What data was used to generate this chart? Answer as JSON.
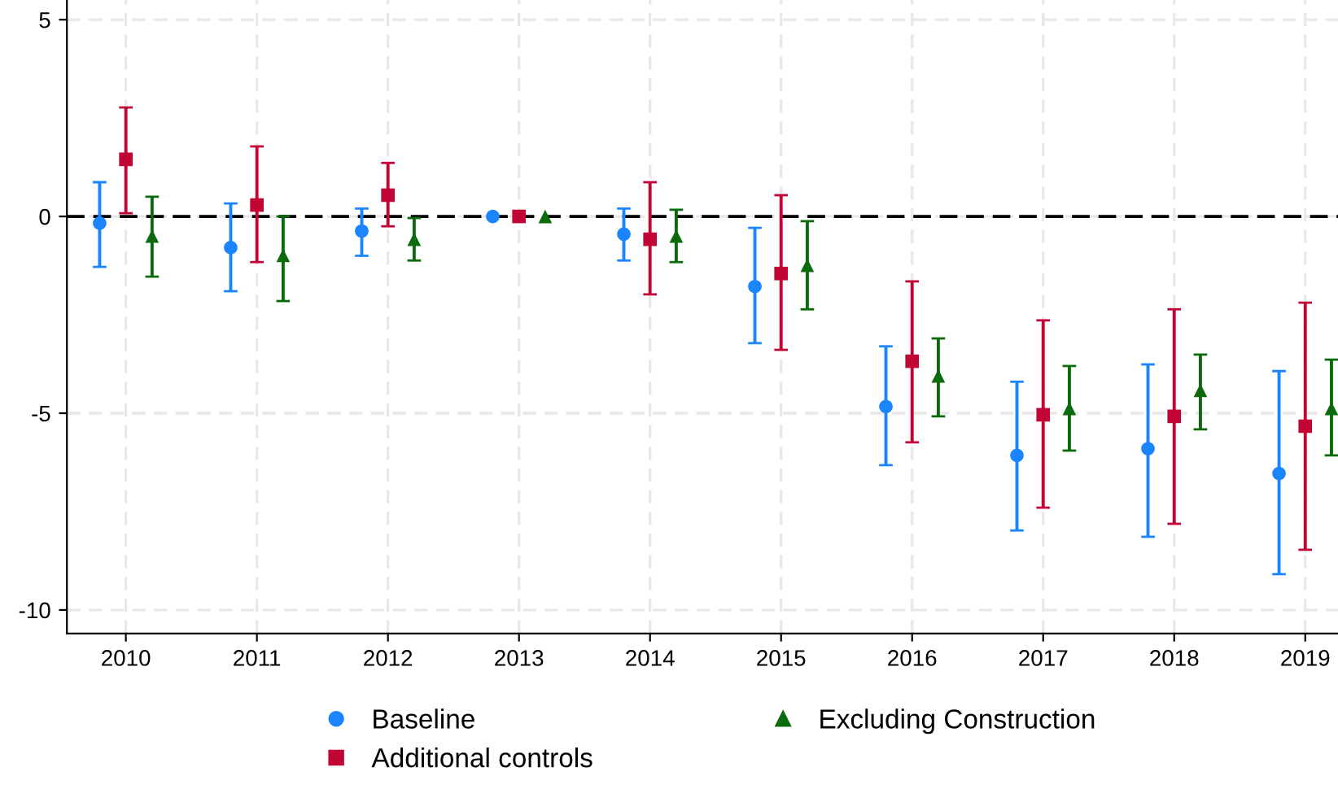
{
  "chart_data": {
    "type": "scatter",
    "xlim": [
      2009.55,
      2019.25
    ],
    "xticks": [
      2010,
      2011,
      2012,
      2013,
      2014,
      2015,
      2016,
      2017,
      2018,
      2019
    ],
    "ylim": [
      -10.6,
      5.5
    ],
    "yticks": [
      -10,
      -5,
      0,
      5
    ],
    "grid": true,
    "legend": "bottom",
    "ref_lines": [
      {
        "axis": "y",
        "value": 0,
        "color": "#000000",
        "line_style": "dashed"
      }
    ],
    "series": [
      {
        "name": "Baseline",
        "color": "#1a85ff",
        "marker": "circle",
        "x": [
          2009.8,
          2010.8,
          2011.8,
          2012.8,
          2013.8,
          2014.8,
          2015.8,
          2016.8,
          2017.8,
          2018.8
        ],
        "values": [
          -0.17,
          -0.79,
          -0.37,
          0,
          -0.45,
          -1.78,
          -4.83,
          -6.07,
          -5.9,
          -6.53
        ],
        "errors": [
          [
            -1.28,
            0.87
          ],
          [
            -1.9,
            0.33
          ],
          [
            -1.0,
            0.2
          ],
          null,
          [
            -1.12,
            0.2
          ],
          [
            -3.22,
            -0.29
          ],
          [
            -6.32,
            -3.3
          ],
          [
            -7.98,
            -4.2
          ],
          [
            -8.14,
            -3.76
          ],
          [
            -9.09,
            -3.93
          ]
        ]
      },
      {
        "name": "Additional controls",
        "color": "#c10534",
        "marker": "square",
        "x": [
          2010,
          2011,
          2012,
          2013,
          2014,
          2015,
          2016,
          2017,
          2018,
          2019
        ],
        "values": [
          1.45,
          0.29,
          0.54,
          0,
          -0.58,
          -1.45,
          -3.68,
          -5.04,
          -5.08,
          -5.33
        ],
        "errors": [
          [
            0.08,
            2.77
          ],
          [
            -1.16,
            1.78
          ],
          [
            -0.25,
            1.36
          ],
          null,
          [
            -1.98,
            0.87
          ],
          [
            -3.39,
            0.54
          ],
          [
            -5.74,
            -1.65
          ],
          [
            -7.4,
            -2.64
          ],
          [
            -7.81,
            -2.36
          ],
          [
            -8.47,
            -2.19
          ]
        ]
      },
      {
        "name": "Excluding Construction",
        "color": "#0b6a0b",
        "marker": "triangle",
        "x": [
          2010.2,
          2011.2,
          2012.2,
          2013.2,
          2014.2,
          2015.2,
          2016.2,
          2017.2,
          2018.2,
          2019.2
        ],
        "values": [
          -0.5,
          -0.99,
          -0.58,
          0,
          -0.5,
          -1.24,
          -4.05,
          -4.88,
          -4.42,
          -4.88
        ],
        "errors": [
          [
            -1.53,
            0.5
          ],
          [
            -2.15,
            0
          ],
          [
            -1.12,
            -0.04
          ],
          null,
          [
            -1.16,
            0.17
          ],
          [
            -2.36,
            -0.12
          ],
          [
            -5.08,
            -3.1
          ],
          [
            -5.95,
            -3.8
          ],
          [
            -5.41,
            -3.51
          ],
          [
            -6.07,
            -3.64
          ]
        ]
      }
    ]
  }
}
